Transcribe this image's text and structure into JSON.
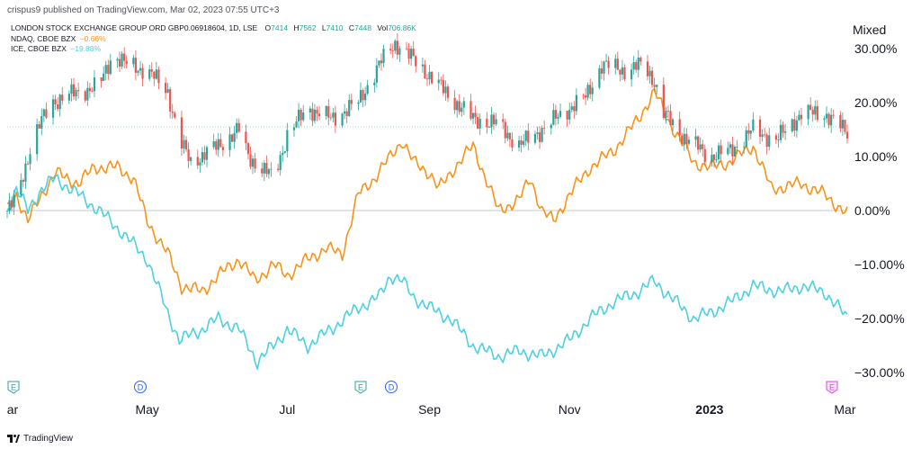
{
  "header": {
    "text": "crispus9 published on TradingView.com, Mar 02, 2023 07:55 UTC+3"
  },
  "legend": {
    "main": {
      "name": "LONDON STOCK EXCHANGE GROUP ORD GBP0.06918604, 1D, LSE",
      "o_label": "O",
      "o": "7414",
      "h_label": "H",
      "h": "7562",
      "l_label": "L",
      "l": "7410",
      "c_label": "C",
      "c": "7448",
      "vol_label": "Vol",
      "vol": "706.86K"
    },
    "ndaq": {
      "name": "NDAQ, CBOE BZX",
      "change": "−0.66%"
    },
    "ice": {
      "name": "ICE, CBOE BZX",
      "change": "−19.88%"
    }
  },
  "scale_mode": "Mixed",
  "brand": {
    "name": "TradingView"
  },
  "colors": {
    "up": "#26a69a",
    "down": "#ef5350",
    "ndaq": "#f7931a",
    "ice": "#4dd0e1",
    "grid": "#e0e3eb"
  },
  "events": [
    {
      "type": "E",
      "color": "#26a69a",
      "date": "2022-03"
    },
    {
      "type": "D",
      "color": "#2962ff",
      "date": "2022-05"
    },
    {
      "type": "E",
      "color": "#26a69a",
      "date": "2022-08"
    },
    {
      "type": "D",
      "color": "#2962ff",
      "date": "2022-08"
    },
    {
      "type": "E",
      "color": "#e040fb",
      "date": "2023-03"
    }
  ],
  "chart_data": {
    "type": "line",
    "title": "LONDON STOCK EXCHANGE GROUP ORD GBP0.06918604, 1D, LSE",
    "xlabel": "",
    "ylabel": "",
    "yscale": "percent",
    "yticks": [
      "30.00%",
      "20.00%",
      "10.00%",
      "0.00%",
      "−10.00%",
      "−20.00%",
      "−30.00%"
    ],
    "ylim": [
      -33,
      36
    ],
    "xticks": [
      {
        "label": "ar",
        "date": "2022-03-01",
        "bold": false
      },
      {
        "label": "May",
        "date": "2022-05-01",
        "bold": false
      },
      {
        "label": "Jul",
        "date": "2022-07-01",
        "bold": false
      },
      {
        "label": "Sep",
        "date": "2022-09-01",
        "bold": false
      },
      {
        "label": "Nov",
        "date": "2022-11-01",
        "bold": false
      },
      {
        "label": "2023",
        "date": "2023-01-01",
        "bold": true
      },
      {
        "label": "Mar",
        "date": "2023-03-01",
        "bold": false
      }
    ],
    "x_range": [
      "2022-03-01",
      "2023-03-02"
    ],
    "reference_line": 15.5,
    "series": [
      {
        "name": "LONDON STOCK EXCHANGE GROUP ORD GBP0.06918604, 1D, LSE",
        "style": "candles",
        "points": [
          [
            "2022-03-01",
            0
          ],
          [
            "2022-03-05",
            2
          ],
          [
            "2022-03-12",
            13
          ],
          [
            "2022-03-20",
            20
          ],
          [
            "2022-04-01",
            22
          ],
          [
            "2022-04-10",
            23
          ],
          [
            "2022-04-16",
            29
          ],
          [
            "2022-04-22",
            27
          ],
          [
            "2022-05-01",
            26
          ],
          [
            "2022-05-10",
            22
          ],
          [
            "2022-05-15",
            13
          ],
          [
            "2022-05-20",
            9
          ],
          [
            "2022-06-01",
            12
          ],
          [
            "2022-06-10",
            15
          ],
          [
            "2022-06-14",
            10
          ],
          [
            "2022-06-25",
            6
          ],
          [
            "2022-07-01",
            14
          ],
          [
            "2022-07-10",
            19
          ],
          [
            "2022-07-20",
            17
          ],
          [
            "2022-08-01",
            20
          ],
          [
            "2022-08-10",
            27
          ],
          [
            "2022-08-17",
            31
          ],
          [
            "2022-08-20",
            30
          ],
          [
            "2022-09-01",
            25
          ],
          [
            "2022-09-10",
            21
          ],
          [
            "2022-09-20",
            17
          ],
          [
            "2022-10-01",
            16
          ],
          [
            "2022-10-10",
            12
          ],
          [
            "2022-10-20",
            15
          ],
          [
            "2022-11-01",
            19
          ],
          [
            "2022-11-08",
            21
          ],
          [
            "2022-11-15",
            27
          ],
          [
            "2022-11-25",
            26
          ],
          [
            "2022-12-03",
            27
          ],
          [
            "2022-12-08",
            24
          ],
          [
            "2022-12-12",
            18
          ],
          [
            "2022-12-20",
            14
          ],
          [
            "2023-01-01",
            10
          ],
          [
            "2023-01-10",
            11
          ],
          [
            "2023-01-20",
            15
          ],
          [
            "2023-01-30",
            13
          ],
          [
            "2023-02-10",
            18
          ],
          [
            "2023-02-20",
            18
          ],
          [
            "2023-03-02",
            14.5
          ]
        ]
      },
      {
        "name": "NDAQ, CBOE BZX",
        "style": "line",
        "points": [
          [
            "2022-03-01",
            0
          ],
          [
            "2022-03-05",
            3
          ],
          [
            "2022-03-10",
            -2
          ],
          [
            "2022-03-16",
            3
          ],
          [
            "2022-03-22",
            7
          ],
          [
            "2022-04-01",
            5
          ],
          [
            "2022-04-08",
            8
          ],
          [
            "2022-04-18",
            8
          ],
          [
            "2022-04-25",
            6
          ],
          [
            "2022-05-01",
            -2
          ],
          [
            "2022-05-10",
            -8
          ],
          [
            "2022-05-16",
            -14
          ],
          [
            "2022-05-25",
            -15
          ],
          [
            "2022-06-01",
            -12
          ],
          [
            "2022-06-10",
            -9
          ],
          [
            "2022-06-17",
            -13
          ],
          [
            "2022-06-25",
            -10
          ],
          [
            "2022-07-01",
            -12
          ],
          [
            "2022-07-10",
            -9
          ],
          [
            "2022-07-18",
            -7
          ],
          [
            "2022-07-25",
            -8
          ],
          [
            "2022-08-01",
            3
          ],
          [
            "2022-08-08",
            6
          ],
          [
            "2022-08-15",
            10
          ],
          [
            "2022-08-20",
            13
          ],
          [
            "2022-08-25",
            9
          ],
          [
            "2022-09-01",
            7
          ],
          [
            "2022-09-05",
            4
          ],
          [
            "2022-09-12",
            8
          ],
          [
            "2022-09-20",
            12
          ],
          [
            "2022-10-01",
            0
          ],
          [
            "2022-10-10",
            2
          ],
          [
            "2022-10-15",
            6
          ],
          [
            "2022-10-20",
            0
          ],
          [
            "2022-10-25",
            -2
          ],
          [
            "2022-11-01",
            3
          ],
          [
            "2022-11-10",
            8
          ],
          [
            "2022-11-20",
            11
          ],
          [
            "2022-12-01",
            17
          ],
          [
            "2022-12-08",
            22
          ],
          [
            "2022-12-15",
            16
          ],
          [
            "2022-12-25",
            9
          ],
          [
            "2023-01-01",
            8
          ],
          [
            "2023-01-10",
            9
          ],
          [
            "2023-01-20",
            12
          ],
          [
            "2023-01-28",
            4
          ],
          [
            "2023-02-10",
            5
          ],
          [
            "2023-02-20",
            3
          ],
          [
            "2023-03-02",
            -0.66
          ]
        ]
      },
      {
        "name": "ICE, CBOE BZX",
        "style": "line",
        "points": [
          [
            "2022-03-01",
            0
          ],
          [
            "2022-03-05",
            4
          ],
          [
            "2022-03-10",
            0
          ],
          [
            "2022-03-16",
            4
          ],
          [
            "2022-03-22",
            6
          ],
          [
            "2022-04-01",
            3
          ],
          [
            "2022-04-10",
            0
          ],
          [
            "2022-04-20",
            -4
          ],
          [
            "2022-05-01",
            -9
          ],
          [
            "2022-05-10",
            -19
          ],
          [
            "2022-05-15",
            -24
          ],
          [
            "2022-05-25",
            -22
          ],
          [
            "2022-06-01",
            -20
          ],
          [
            "2022-06-10",
            -22
          ],
          [
            "2022-06-18",
            -28
          ],
          [
            "2022-06-25",
            -25
          ],
          [
            "2022-07-01",
            -22
          ],
          [
            "2022-07-10",
            -25
          ],
          [
            "2022-07-20",
            -22
          ],
          [
            "2022-08-01",
            -18
          ],
          [
            "2022-08-10",
            -16
          ],
          [
            "2022-08-15",
            -12
          ],
          [
            "2022-08-20",
            -13
          ],
          [
            "2022-08-25",
            -16
          ],
          [
            "2022-09-01",
            -18
          ],
          [
            "2022-09-10",
            -20
          ],
          [
            "2022-09-20",
            -25
          ],
          [
            "2022-10-01",
            -27
          ],
          [
            "2022-10-10",
            -26
          ],
          [
            "2022-10-20",
            -27
          ],
          [
            "2022-11-01",
            -24
          ],
          [
            "2022-11-10",
            -20
          ],
          [
            "2022-11-20",
            -17
          ],
          [
            "2022-12-01",
            -15
          ],
          [
            "2022-12-08",
            -13
          ],
          [
            "2022-12-15",
            -16
          ],
          [
            "2022-12-25",
            -20
          ],
          [
            "2023-01-01",
            -19
          ],
          [
            "2023-01-10",
            -17
          ],
          [
            "2023-01-20",
            -14
          ],
          [
            "2023-02-01",
            -15
          ],
          [
            "2023-02-10",
            -14
          ],
          [
            "2023-02-20",
            -15
          ],
          [
            "2023-03-02",
            -19.88
          ]
        ]
      }
    ]
  }
}
